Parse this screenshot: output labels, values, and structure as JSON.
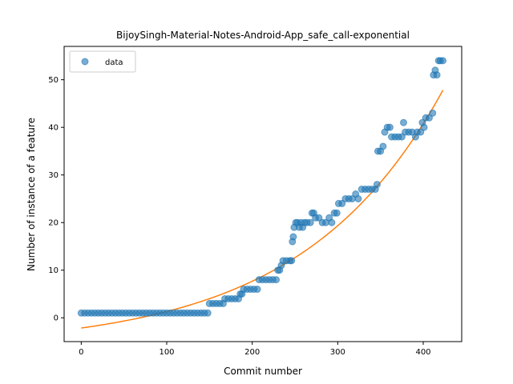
{
  "chart_data": {
    "type": "scatter",
    "title": "BijoySingh-Material-Notes-Android-App_safe_call-exponential",
    "xlabel": "Commit number",
    "ylabel": "Number of instance of a feature",
    "xlim": [
      -20,
      445
    ],
    "ylim": [
      -5,
      57
    ],
    "xticks": [
      0,
      100,
      200,
      300,
      400
    ],
    "yticks": [
      0,
      10,
      20,
      30,
      40,
      50
    ],
    "grid": false,
    "legend": {
      "position": "top-left",
      "entries": [
        "data"
      ]
    },
    "colors": {
      "data": "#1f77b4",
      "fit": "#ff7f0e"
    },
    "series": [
      {
        "name": "data",
        "kind": "scatter",
        "points": [
          [
            0,
            1
          ],
          [
            4,
            1
          ],
          [
            8,
            1
          ],
          [
            12,
            1
          ],
          [
            16,
            1
          ],
          [
            20,
            1
          ],
          [
            24,
            1
          ],
          [
            28,
            1
          ],
          [
            32,
            1
          ],
          [
            36,
            1
          ],
          [
            40,
            1
          ],
          [
            44,
            1
          ],
          [
            48,
            1
          ],
          [
            52,
            1
          ],
          [
            56,
            1
          ],
          [
            60,
            1
          ],
          [
            64,
            1
          ],
          [
            68,
            1
          ],
          [
            72,
            1
          ],
          [
            76,
            1
          ],
          [
            80,
            1
          ],
          [
            84,
            1
          ],
          [
            88,
            1
          ],
          [
            92,
            1
          ],
          [
            96,
            1
          ],
          [
            100,
            1
          ],
          [
            104,
            1
          ],
          [
            108,
            1
          ],
          [
            112,
            1
          ],
          [
            116,
            1
          ],
          [
            120,
            1
          ],
          [
            124,
            1
          ],
          [
            128,
            1
          ],
          [
            132,
            1
          ],
          [
            136,
            1
          ],
          [
            140,
            1
          ],
          [
            144,
            1
          ],
          [
            148,
            1
          ],
          [
            150,
            3
          ],
          [
            154,
            3
          ],
          [
            158,
            3
          ],
          [
            162,
            3
          ],
          [
            166,
            3
          ],
          [
            168,
            4
          ],
          [
            172,
            4
          ],
          [
            176,
            4
          ],
          [
            180,
            4
          ],
          [
            184,
            4
          ],
          [
            186,
            5
          ],
          [
            188,
            5
          ],
          [
            190,
            6
          ],
          [
            194,
            6
          ],
          [
            198,
            6
          ],
          [
            202,
            6
          ],
          [
            206,
            6
          ],
          [
            208,
            8
          ],
          [
            212,
            8
          ],
          [
            216,
            8
          ],
          [
            220,
            8
          ],
          [
            224,
            8
          ],
          [
            228,
            8
          ],
          [
            230,
            10
          ],
          [
            232,
            10
          ],
          [
            234,
            11
          ],
          [
            236,
            12
          ],
          [
            240,
            12
          ],
          [
            244,
            12
          ],
          [
            246,
            12
          ],
          [
            247,
            16
          ],
          [
            248,
            17
          ],
          [
            249,
            19
          ],
          [
            251,
            20
          ],
          [
            253,
            20
          ],
          [
            255,
            19
          ],
          [
            257,
            20
          ],
          [
            259,
            19
          ],
          [
            261,
            20
          ],
          [
            264,
            20
          ],
          [
            268,
            20
          ],
          [
            270,
            22
          ],
          [
            272,
            22
          ],
          [
            274,
            21
          ],
          [
            278,
            21
          ],
          [
            282,
            20
          ],
          [
            286,
            20
          ],
          [
            290,
            21
          ],
          [
            293,
            20
          ],
          [
            296,
            22
          ],
          [
            299,
            22
          ],
          [
            301,
            24
          ],
          [
            305,
            24
          ],
          [
            309,
            25
          ],
          [
            313,
            25
          ],
          [
            317,
            25
          ],
          [
            321,
            26
          ],
          [
            324,
            25
          ],
          [
            328,
            27
          ],
          [
            332,
            27
          ],
          [
            336,
            27
          ],
          [
            340,
            27
          ],
          [
            344,
            27
          ],
          [
            346,
            28
          ],
          [
            347,
            35
          ],
          [
            350,
            35
          ],
          [
            353,
            36
          ],
          [
            355,
            39
          ],
          [
            358,
            40
          ],
          [
            361,
            40
          ],
          [
            363,
            38
          ],
          [
            367,
            38
          ],
          [
            371,
            38
          ],
          [
            375,
            38
          ],
          [
            377,
            41
          ],
          [
            379,
            39
          ],
          [
            383,
            39
          ],
          [
            387,
            39
          ],
          [
            391,
            38
          ],
          [
            393,
            39
          ],
          [
            397,
            39
          ],
          [
            399,
            41
          ],
          [
            401,
            40
          ],
          [
            403,
            42
          ],
          [
            407,
            42
          ],
          [
            411,
            43
          ],
          [
            412,
            51
          ],
          [
            414,
            52
          ],
          [
            416,
            51
          ],
          [
            418,
            54
          ],
          [
            420,
            54
          ],
          [
            423,
            54
          ]
        ]
      },
      {
        "name": "fit",
        "kind": "line",
        "x_range": [
          0,
          423
        ],
        "model": {
          "a": 4.15,
          "b": 0.00607,
          "c": -6.3
        }
      }
    ]
  }
}
